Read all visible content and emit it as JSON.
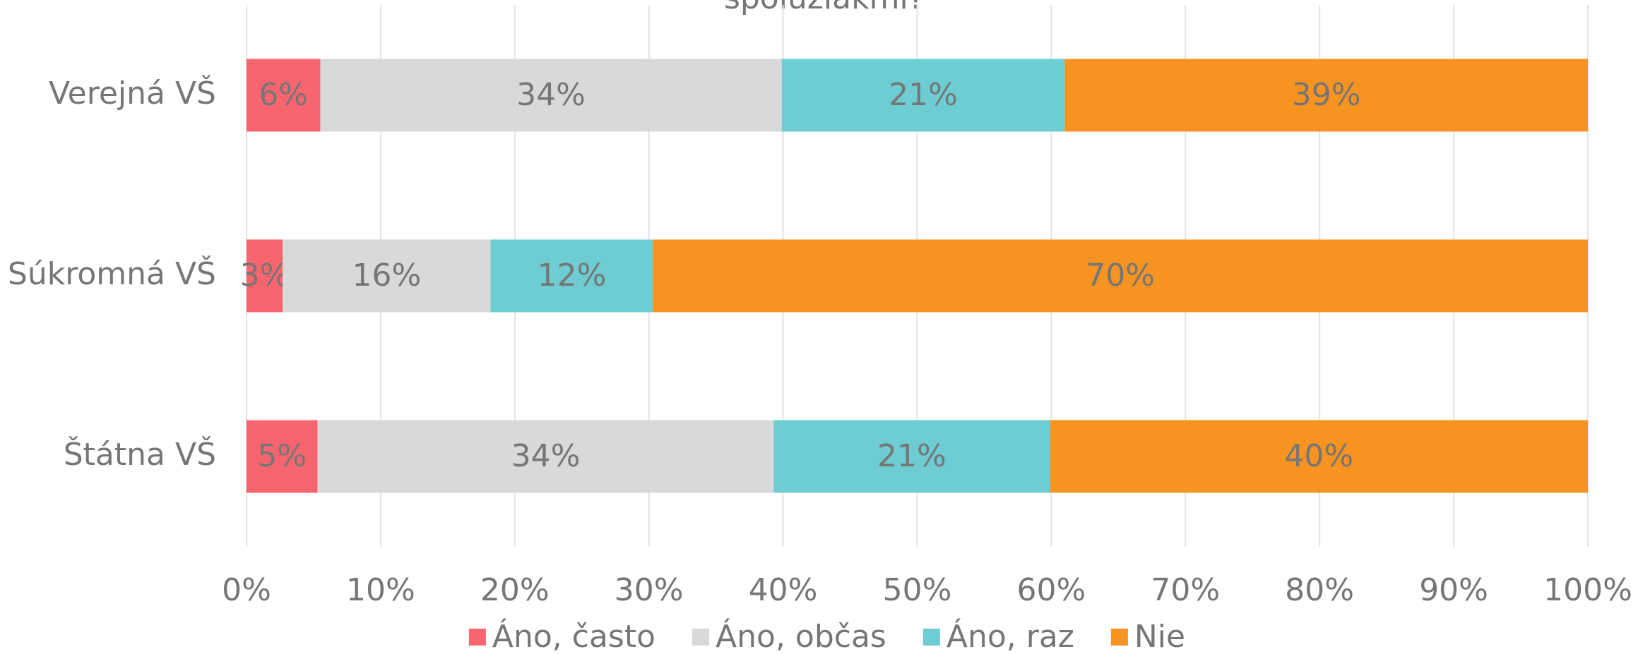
{
  "chart_data": {
    "type": "stacked-bar-horizontal",
    "title": "spolužiakmi?",
    "categories": [
      "Verejná VŠ",
      "Súkromná VŠ",
      "Štátna VŠ"
    ],
    "series": [
      {
        "name": "Áno, často",
        "color": "#f8656f",
        "values": [
          5.5,
          2.7,
          5.3
        ],
        "value_labels": [
          "6%",
          "3%",
          "5%"
        ]
      },
      {
        "name": "Áno, občas",
        "color": "#d9d9d9",
        "values": [
          34.4,
          15.5,
          34.0
        ],
        "value_labels": [
          "34%",
          "16%",
          "34%"
        ]
      },
      {
        "name": "Áno, raz",
        "color": "#6dcdd3",
        "values": [
          21.1,
          12.1,
          20.6
        ],
        "value_labels": [
          "21%",
          "12%",
          "21%"
        ]
      },
      {
        "name": "Nie",
        "color": "#f79320",
        "values": [
          39.0,
          69.7,
          40.1
        ],
        "value_labels": [
          "39%",
          "70%",
          "40%"
        ]
      }
    ],
    "xlim": [
      0,
      100
    ],
    "xticks": [
      {
        "value": 0,
        "label": "0%"
      },
      {
        "value": 10,
        "label": "10%"
      },
      {
        "value": 20,
        "label": "20%"
      },
      {
        "value": 30,
        "label": "30%"
      },
      {
        "value": 40,
        "label": "40%"
      },
      {
        "value": 50,
        "label": "50%"
      },
      {
        "value": 60,
        "label": "60%"
      },
      {
        "value": 70,
        "label": "70%"
      },
      {
        "value": 80,
        "label": "80%"
      },
      {
        "value": 90,
        "label": "90%"
      },
      {
        "value": 100,
        "label": "100%"
      }
    ],
    "grid": true,
    "legend": "bottom"
  }
}
